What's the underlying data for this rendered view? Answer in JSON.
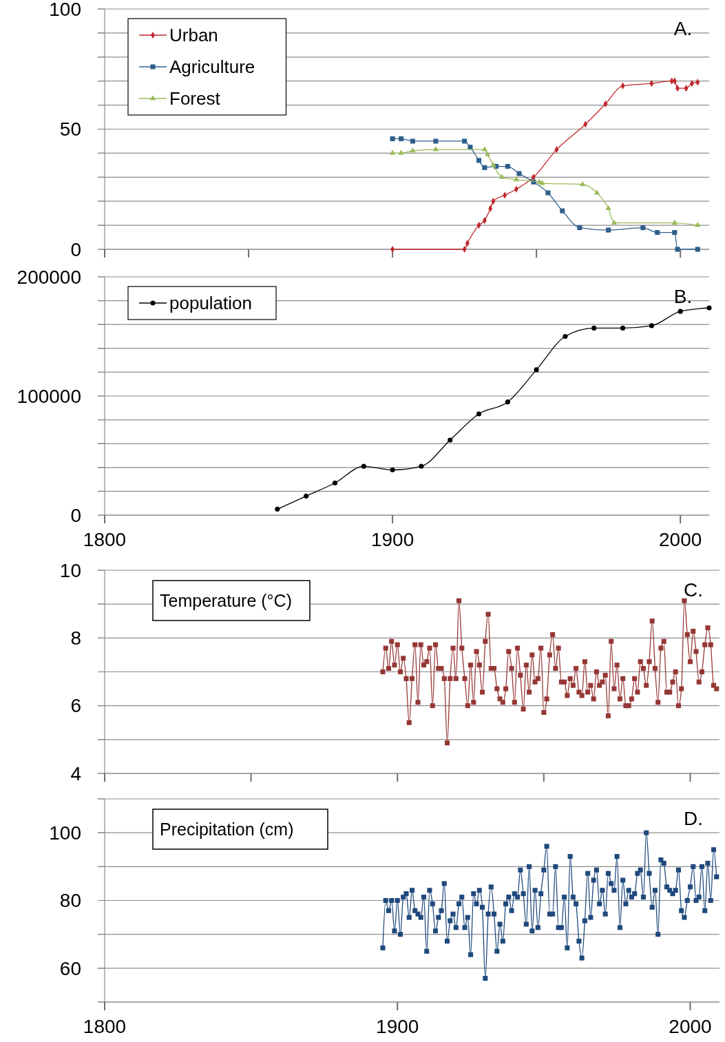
{
  "chart_data": [
    {
      "type": "line",
      "title": "A.",
      "xlim": [
        1800,
        2010
      ],
      "ylim": [
        0,
        100
      ],
      "xticks": [
        1800,
        1850,
        1900,
        1950,
        2000
      ],
      "yticks": [
        0,
        {
          "value": 10,
          "label": null
        },
        {
          "value": 20,
          "label": null
        },
        {
          "value": 30,
          "label": null
        },
        {
          "value": 40,
          "label": null
        },
        50,
        {
          "value": 60,
          "label": null
        },
        {
          "value": 70,
          "label": null
        },
        {
          "value": 80,
          "label": null
        },
        {
          "value": 90,
          "label": null
        },
        100
      ],
      "tick_labels": "y",
      "grid": "y",
      "legend": "top left",
      "series": [
        {
          "name": "Urban",
          "color": "#c0272d",
          "marker": "diamond",
          "x": [
            1900,
            1925,
            1926,
            1930,
            1932,
            1934,
            1935,
            1939,
            1943,
            1949,
            1957,
            1967,
            1974,
            1980,
            1990,
            1997,
            1998,
            1999,
            2002,
            2004,
            2006
          ],
          "values": [
            0,
            0,
            2.5,
            10,
            12,
            17,
            20,
            22.5,
            25,
            30,
            41.5,
            52,
            60.5,
            68,
            69,
            70,
            70,
            67,
            67,
            69,
            69.5
          ]
        },
        {
          "name": "Agriculture",
          "color": "#2e5f8a",
          "marker": "square",
          "x": [
            1900,
            1903,
            1907,
            1915,
            1925,
            1927,
            1930,
            1932,
            1936,
            1940,
            1944,
            1949,
            1954,
            1959,
            1965,
            1975,
            1987,
            1992,
            1998,
            1999,
            2006
          ],
          "values": [
            46,
            46,
            45,
            45,
            45,
            42.5,
            37,
            34,
            34.5,
            34.5,
            31.5,
            28,
            23.5,
            16,
            9,
            8,
            9,
            7,
            7,
            0,
            0
          ]
        },
        {
          "name": "Forest",
          "color": "#9bbb59",
          "marker": "triangle",
          "x": [
            1900,
            1903,
            1907,
            1915,
            1932,
            1933,
            1935,
            1938,
            1943,
            1951,
            1952,
            1966,
            1971,
            1975,
            1977,
            1998,
            2006
          ],
          "values": [
            40,
            40,
            41,
            41.5,
            41.5,
            39.5,
            35,
            30,
            29,
            28,
            27.5,
            27,
            23.5,
            17,
            11,
            11,
            10
          ]
        }
      ]
    },
    {
      "type": "line",
      "title": "B.",
      "xlim": [
        1800,
        2010
      ],
      "ylim": [
        0,
        200000
      ],
      "xticks": [
        1800,
        1900,
        2000
      ],
      "yticks": [
        0,
        {
          "value": 20000,
          "label": null
        },
        {
          "value": 40000,
          "label": null
        },
        {
          "value": 60000,
          "label": null
        },
        {
          "value": 80000,
          "label": null
        },
        100000,
        {
          "value": 120000,
          "label": null
        },
        {
          "value": 140000,
          "label": null
        },
        {
          "value": 160000,
          "label": null
        },
        {
          "value": 180000,
          "label": null
        },
        200000
      ],
      "grid": "y",
      "legend": "top left",
      "marker": "circle",
      "series": [
        {
          "name": "population",
          "color": "#000000",
          "x": [
            1860,
            1870,
            1880,
            1890,
            1900,
            1910,
            1920,
            1930,
            1940,
            1950,
            1960,
            1970,
            1980,
            1990,
            2000,
            2010
          ],
          "values": [
            5000,
            16000,
            27000,
            41000,
            38000,
            41000,
            63000,
            85000,
            95000,
            122000,
            150000,
            157000,
            157000,
            159000,
            171000,
            174000
          ]
        }
      ]
    },
    {
      "type": "line",
      "title": "C.",
      "annotations": [
        "Temperature (°C)"
      ],
      "xlim": [
        1800,
        2010
      ],
      "ylim": [
        4,
        10
      ],
      "xticks": [
        1800,
        1850,
        1900,
        1950,
        2000
      ],
      "yticks": [
        4,
        {
          "value": 5,
          "label": null
        },
        6,
        {
          "value": 7,
          "label": null
        },
        8,
        {
          "value": 9,
          "label": null
        },
        10
      ],
      "tick_labels": "y",
      "grid": "y",
      "marker": "square",
      "series": [
        {
          "color": "#953735",
          "x": [
            1895,
            1896,
            1897,
            1898,
            1899,
            1900,
            1901,
            1902,
            1903,
            1904,
            1905,
            1906,
            1907,
            1908,
            1909,
            1910,
            1911,
            1912,
            1913,
            1914,
            1915,
            1916,
            1917,
            1918,
            1919,
            1920,
            1921,
            1922,
            1923,
            1924,
            1925,
            1926,
            1927,
            1928,
            1929,
            1930,
            1931,
            1932,
            1933,
            1934,
            1935,
            1936,
            1937,
            1938,
            1939,
            1940,
            1941,
            1942,
            1943,
            1944,
            1945,
            1946,
            1947,
            1948,
            1949,
            1950,
            1951,
            1952,
            1953,
            1954,
            1955,
            1956,
            1957,
            1958,
            1959,
            1960,
            1961,
            1962,
            1963,
            1964,
            1965,
            1966,
            1967,
            1968,
            1969,
            1970,
            1971,
            1972,
            1973,
            1974,
            1975,
            1976,
            1977,
            1978,
            1979,
            1980,
            1981,
            1982,
            1983,
            1984,
            1985,
            1986,
            1987,
            1988,
            1989,
            1990,
            1991,
            1992,
            1993,
            1994,
            1995,
            1996,
            1997,
            1998,
            1999,
            2000,
            2001,
            2002,
            2003,
            2004,
            2005,
            2006,
            2007,
            2008,
            2009
          ],
          "values": [
            7.0,
            7.7,
            7.1,
            7.9,
            7.2,
            7.8,
            7.0,
            7.4,
            6.8,
            5.5,
            6.8,
            7.8,
            6.1,
            7.8,
            7.2,
            7.3,
            7.7,
            6.0,
            7.8,
            7.1,
            7.1,
            6.8,
            4.9,
            6.8,
            7.7,
            6.8,
            9.1,
            7.7,
            6.8,
            6.0,
            7.2,
            6.1,
            7.6,
            7.2,
            6.4,
            7.9,
            8.7,
            7.1,
            7.1,
            6.5,
            6.2,
            6.1,
            6.5,
            7.6,
            7.1,
            6.1,
            7.7,
            6.9,
            5.9,
            7.2,
            6.4,
            7.5,
            6.7,
            6.8,
            7.7,
            5.8,
            6.2,
            7.5,
            8.1,
            7.1,
            7.7,
            6.7,
            6.7,
            6.3,
            6.8,
            6.6,
            7.1,
            6.4,
            6.3,
            7.3,
            6.4,
            6.6,
            6.2,
            7.0,
            6.6,
            6.7,
            6.9,
            5.7,
            7.9,
            6.5,
            7.2,
            6.2,
            6.8,
            6.0,
            6.0,
            6.2,
            6.8,
            6.4,
            7.3,
            7.1,
            6.6,
            7.3,
            8.5,
            7.1,
            6.1,
            7.7,
            7.9,
            6.4,
            6.4,
            6.7,
            7.0,
            6.0,
            6.5,
            9.1,
            8.1,
            7.3,
            8.2,
            7.6,
            6.7,
            7.0,
            7.8,
            8.3,
            7.8,
            6.6,
            6.5
          ]
        }
      ]
    },
    {
      "type": "line",
      "title": "D.",
      "annotations": [
        "Precipitation (cm)"
      ],
      "xlim": [
        1800,
        2010
      ],
      "ylim": [
        50,
        110
      ],
      "xticks": [
        1800,
        1900,
        2000
      ],
      "yticks": [
        {
          "value": 50,
          "label": null
        },
        60,
        {
          "value": 70,
          "label": null
        },
        80,
        {
          "value": 90,
          "label": null
        },
        100,
        {
          "value": 110,
          "label": null
        }
      ],
      "grid": "y",
      "marker": "square",
      "series": [
        {
          "color": "#1f497d",
          "x": [
            1895,
            1896,
            1897,
            1898,
            1899,
            1900,
            1901,
            1902,
            1903,
            1904,
            1905,
            1906,
            1907,
            1908,
            1909,
            1910,
            1911,
            1912,
            1913,
            1914,
            1915,
            1916,
            1917,
            1918,
            1919,
            1920,
            1921,
            1922,
            1923,
            1924,
            1925,
            1926,
            1927,
            1928,
            1929,
            1930,
            1931,
            1932,
            1933,
            1934,
            1935,
            1936,
            1937,
            1938,
            1939,
            1940,
            1941,
            1942,
            1943,
            1944,
            1945,
            1946,
            1947,
            1948,
            1949,
            1950,
            1951,
            1952,
            1953,
            1954,
            1955,
            1956,
            1957,
            1958,
            1959,
            1960,
            1961,
            1962,
            1963,
            1964,
            1965,
            1966,
            1967,
            1968,
            1969,
            1970,
            1971,
            1972,
            1973,
            1974,
            1975,
            1976,
            1977,
            1978,
            1979,
            1980,
            1981,
            1982,
            1983,
            1984,
            1985,
            1986,
            1987,
            1988,
            1989,
            1990,
            1991,
            1992,
            1993,
            1994,
            1995,
            1996,
            1997,
            1998,
            1999,
            2000,
            2001,
            2002,
            2003,
            2004,
            2005,
            2006,
            2007,
            2008,
            2009
          ],
          "values": [
            66,
            80,
            77,
            80,
            71,
            80,
            70,
            81,
            82,
            75,
            83,
            77,
            76,
            75,
            81,
            65,
            83,
            79,
            71,
            75,
            77,
            85,
            68,
            74,
            76,
            72,
            79,
            81,
            72,
            75,
            64,
            82,
            79,
            83,
            78,
            57,
            76,
            84,
            76,
            65,
            73,
            68,
            79,
            81,
            77,
            82,
            81,
            89,
            82,
            73,
            90,
            71,
            83,
            72,
            82,
            89,
            96,
            76,
            76,
            90,
            72,
            72,
            81,
            66,
            93,
            81,
            79,
            68,
            63,
            74,
            88,
            75,
            86,
            89,
            79,
            83,
            76,
            88,
            85,
            83,
            93,
            72,
            86,
            79,
            83,
            81,
            82,
            88,
            89,
            81,
            100,
            88,
            78,
            83,
            70,
            92,
            91,
            84,
            83,
            82,
            83,
            89,
            77,
            75,
            80,
            84,
            90,
            80,
            81,
            90,
            77,
            91,
            80,
            95,
            87
          ]
        }
      ]
    }
  ]
}
